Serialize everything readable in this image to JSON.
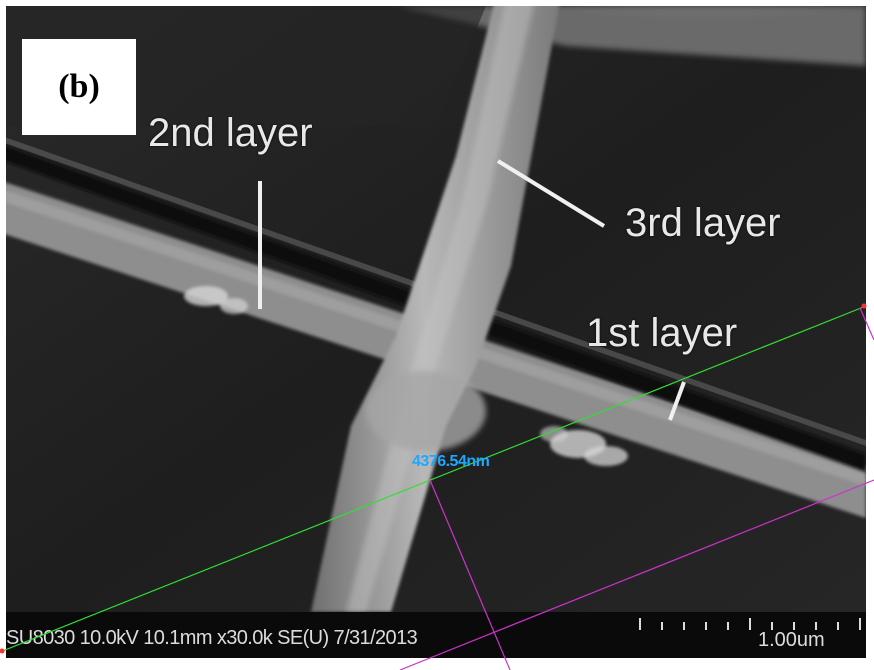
{
  "panel_label": "(b)",
  "annotations": {
    "layer_2": "2nd layer",
    "layer_3": "3rd layer",
    "layer_1": "1st layer"
  },
  "measurement": {
    "readout": "4376.54nm",
    "line_color": "#33dd33",
    "guide_color": "#cc33cc",
    "text_color": "#1ea7ff"
  },
  "info_bar": {
    "text": "SU8030 10.0kV 10.1mm x30.0k SE(U) 7/31/2013",
    "scale_label": "1.00um",
    "scale_ticks": 11
  }
}
